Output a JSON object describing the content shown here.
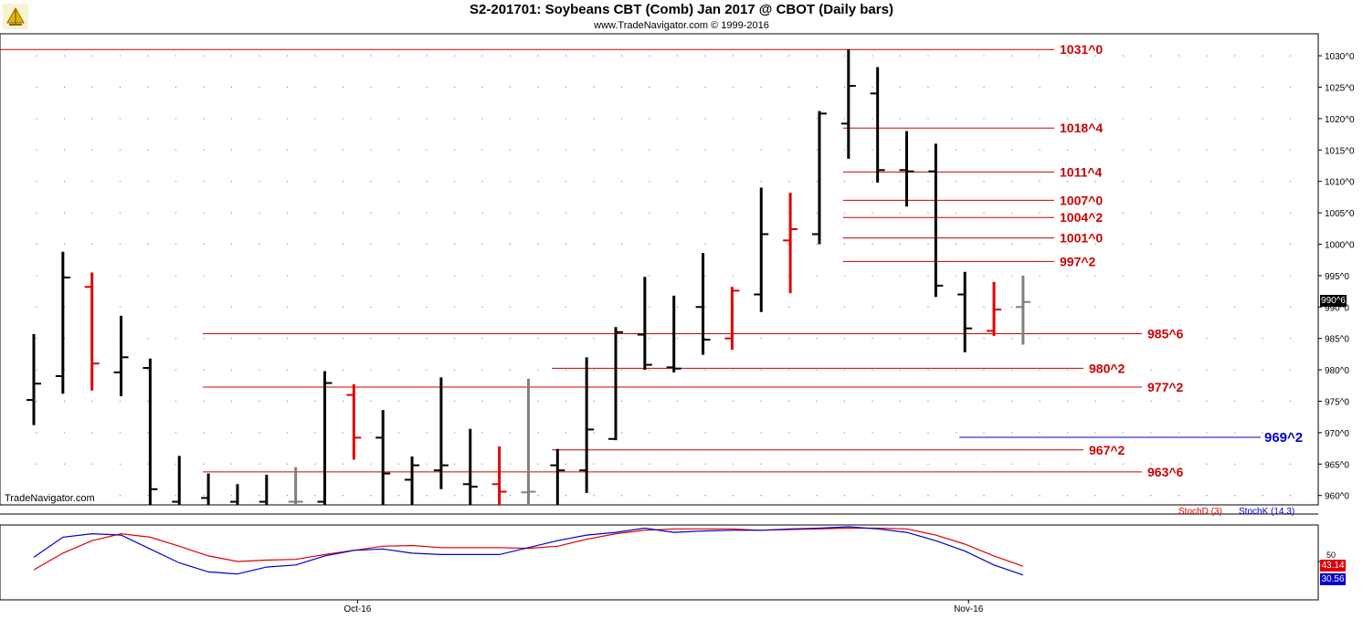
{
  "header": {
    "title": "S2-201701:  Soybeans CBT (Comb) Jan 2017 @ CBOT  (Daily bars)",
    "subtitle": "www.TradeNavigator.com © 1999-2016"
  },
  "watermark": "TradeNavigator.com",
  "colors": {
    "up": "#000000",
    "down": "#e00000",
    "neutral": "#808080",
    "level": "#cc0000",
    "stoch_d": "#e00000",
    "stoch_k": "#0000d0"
  },
  "chart_data": [
    {
      "type": "ohlc",
      "title": "S2-201701:  Soybeans CBT (Comb) Jan 2017 @ CBOT  (Daily bars)",
      "ylim": [
        958.5,
        1033.5
      ],
      "yticks": [
        960,
        965,
        970,
        975,
        980,
        985,
        990,
        995,
        1000,
        1005,
        1010,
        1015,
        1020,
        1025,
        1030
      ],
      "ytick_labels": [
        "960^0",
        "965^0",
        "970^0",
        "975^0",
        "980^0",
        "985^0",
        "990^0",
        "995^0",
        "1000^0",
        "1005^0",
        "1010^0",
        "1015^0",
        "1020^0",
        "1025^0",
        "1030^0"
      ],
      "x_labels": [
        {
          "label": "Oct-16",
          "bar": 11
        },
        {
          "label": "Nov-16",
          "bar": 32
        }
      ],
      "last_price": "990^6",
      "bars": [
        {
          "o": 975.2,
          "h": 985.7,
          "l": 971.2,
          "c": 977.8,
          "color": "up"
        },
        {
          "o": 979.0,
          "h": 998.8,
          "l": 976.2,
          "c": 994.7,
          "color": "up"
        },
        {
          "o": 993.2,
          "h": 995.5,
          "l": 976.7,
          "c": 981.0,
          "color": "down"
        },
        {
          "o": 979.6,
          "h": 988.6,
          "l": 975.8,
          "c": 982.0,
          "color": "up"
        },
        {
          "o": 980.3,
          "h": 981.8,
          "l": 957.0,
          "c": 961.0,
          "color": "up"
        },
        {
          "o": 959.0,
          "h": 966.3,
          "l": 957.0,
          "c": 958.4,
          "color": "up"
        },
        {
          "o": 959.6,
          "h": 963.5,
          "l": 957.0,
          "c": 958.4,
          "color": "up"
        },
        {
          "o": 959.0,
          "h": 961.8,
          "l": 957.0,
          "c": 958.4,
          "color": "up"
        },
        {
          "o": 959.0,
          "h": 963.3,
          "l": 957.0,
          "c": 958.4,
          "color": "up"
        },
        {
          "o": 959.0,
          "h": 964.5,
          "l": 958.4,
          "c": 959.0,
          "color": "neutral"
        },
        {
          "o": 959.0,
          "h": 979.8,
          "l": 957.0,
          "c": 977.9,
          "color": "up"
        },
        {
          "o": 976.0,
          "h": 977.7,
          "l": 965.7,
          "c": 969.2,
          "color": "down"
        },
        {
          "o": 969.2,
          "h": 973.6,
          "l": 957.0,
          "c": 963.5,
          "color": "up"
        },
        {
          "o": 962.5,
          "h": 966.2,
          "l": 957.0,
          "c": 964.8,
          "color": "up"
        },
        {
          "o": 964.0,
          "h": 978.8,
          "l": 961.0,
          "c": 964.8,
          "color": "up"
        },
        {
          "o": 961.8,
          "h": 970.6,
          "l": 957.0,
          "c": 961.4,
          "color": "up"
        },
        {
          "o": 961.8,
          "h": 967.8,
          "l": 957.0,
          "c": 960.6,
          "color": "down"
        },
        {
          "o": 960.5,
          "h": 978.6,
          "l": 957.0,
          "c": 960.6,
          "color": "neutral"
        },
        {
          "o": 964.8,
          "h": 967.4,
          "l": 957.0,
          "c": 964.0,
          "color": "up"
        },
        {
          "o": 964.0,
          "h": 982.0,
          "l": 960.4,
          "c": 970.5,
          "color": "up"
        },
        {
          "o": 969.0,
          "h": 986.8,
          "l": 968.8,
          "c": 986.0,
          "color": "up"
        },
        {
          "o": 985.6,
          "h": 994.8,
          "l": 980.0,
          "c": 980.8,
          "color": "up"
        },
        {
          "o": 980.4,
          "h": 991.8,
          "l": 979.6,
          "c": 980.2,
          "color": "up"
        },
        {
          "o": 990.0,
          "h": 998.6,
          "l": 982.4,
          "c": 984.8,
          "color": "up"
        },
        {
          "o": 985.0,
          "h": 993.2,
          "l": 983.2,
          "c": 992.6,
          "color": "down"
        },
        {
          "o": 992.0,
          "h": 1009.0,
          "l": 989.2,
          "c": 1001.6,
          "color": "up"
        },
        {
          "o": 1000.6,
          "h": 1008.2,
          "l": 992.2,
          "c": 1002.4,
          "color": "down"
        },
        {
          "o": 1001.6,
          "h": 1021.2,
          "l": 1000.0,
          "c": 1020.8,
          "color": "up"
        },
        {
          "o": 1019.2,
          "h": 1031.0,
          "l": 1013.6,
          "c": 1025.2,
          "color": "up"
        },
        {
          "o": 1024.0,
          "h": 1028.2,
          "l": 1009.8,
          "c": 1011.8,
          "color": "up"
        },
        {
          "o": 1011.8,
          "h": 1018.0,
          "l": 1006.0,
          "c": 1011.6,
          "color": "up"
        },
        {
          "o": 1011.6,
          "h": 1016.0,
          "l": 991.6,
          "c": 993.4,
          "color": "up"
        },
        {
          "o": 992.0,
          "h": 995.6,
          "l": 982.8,
          "c": 986.6,
          "color": "up"
        },
        {
          "o": 986.2,
          "h": 994.0,
          "l": 985.4,
          "c": 989.6,
          "color": "down"
        },
        {
          "o": 990.0,
          "h": 995.0,
          "l": 984.0,
          "c": 990.8,
          "color": "neutral"
        }
      ],
      "annotations": [
        {
          "label": "1031^0",
          "value": 1031.0,
          "from_bar": -1,
          "color": "#cc0000"
        },
        {
          "label": "1018^4",
          "value": 1018.5,
          "from_bar": 28,
          "color": "#cc0000"
        },
        {
          "label": "1011^4",
          "value": 1011.5,
          "from_bar": 28,
          "color": "#cc0000"
        },
        {
          "label": "1007^0",
          "value": 1007.0,
          "from_bar": 28,
          "color": "#cc0000"
        },
        {
          "label": "1004^2",
          "value": 1004.25,
          "from_bar": 28,
          "color": "#cc0000"
        },
        {
          "label": "1001^0",
          "value": 1001.0,
          "from_bar": 28,
          "color": "#cc0000"
        },
        {
          "label": "997^2",
          "value": 997.25,
          "from_bar": 28,
          "color": "#cc0000"
        },
        {
          "label": "985^6",
          "value": 985.75,
          "from_bar": 6,
          "color": "#cc0000"
        },
        {
          "label": "980^2",
          "value": 980.25,
          "from_bar": 18,
          "color": "#cc0000"
        },
        {
          "label": "977^2",
          "value": 977.25,
          "from_bar": 6,
          "color": "#cc0000"
        },
        {
          "label": "969^2",
          "value": 969.25,
          "from_bar": 32,
          "color": "#0000d0"
        },
        {
          "label": "967^2",
          "value": 967.25,
          "from_bar": 18,
          "color": "#cc0000"
        },
        {
          "label": "963^6",
          "value": 963.75,
          "from_bar": 6,
          "color": "#cc0000"
        }
      ]
    },
    {
      "type": "line",
      "title": "",
      "ylim": [
        0,
        100
      ],
      "yticks": [
        50
      ],
      "series": [
        {
          "name": "StochD (3)",
          "color": "#e00000",
          "last": "43.14",
          "values": [
            38,
            62,
            80,
            90,
            85,
            72,
            58,
            50,
            52,
            53,
            60,
            66,
            72,
            73,
            70,
            70,
            70,
            69,
            72,
            82,
            90,
            95,
            97,
            97,
            97,
            95,
            96,
            97,
            98,
            98,
            97,
            88,
            75,
            58,
            43.14
          ]
        },
        {
          "name": "StochK (14,3)",
          "color": "#0000d0",
          "last": "30.56",
          "values": [
            56,
            85,
            90,
            88,
            68,
            48,
            35,
            32,
            42,
            45,
            58,
            66,
            68,
            62,
            60,
            60,
            60,
            70,
            80,
            88,
            92,
            98,
            92,
            94,
            95,
            95,
            97,
            98,
            100,
            97,
            92,
            80,
            65,
            45,
            30.56
          ]
        }
      ]
    }
  ]
}
